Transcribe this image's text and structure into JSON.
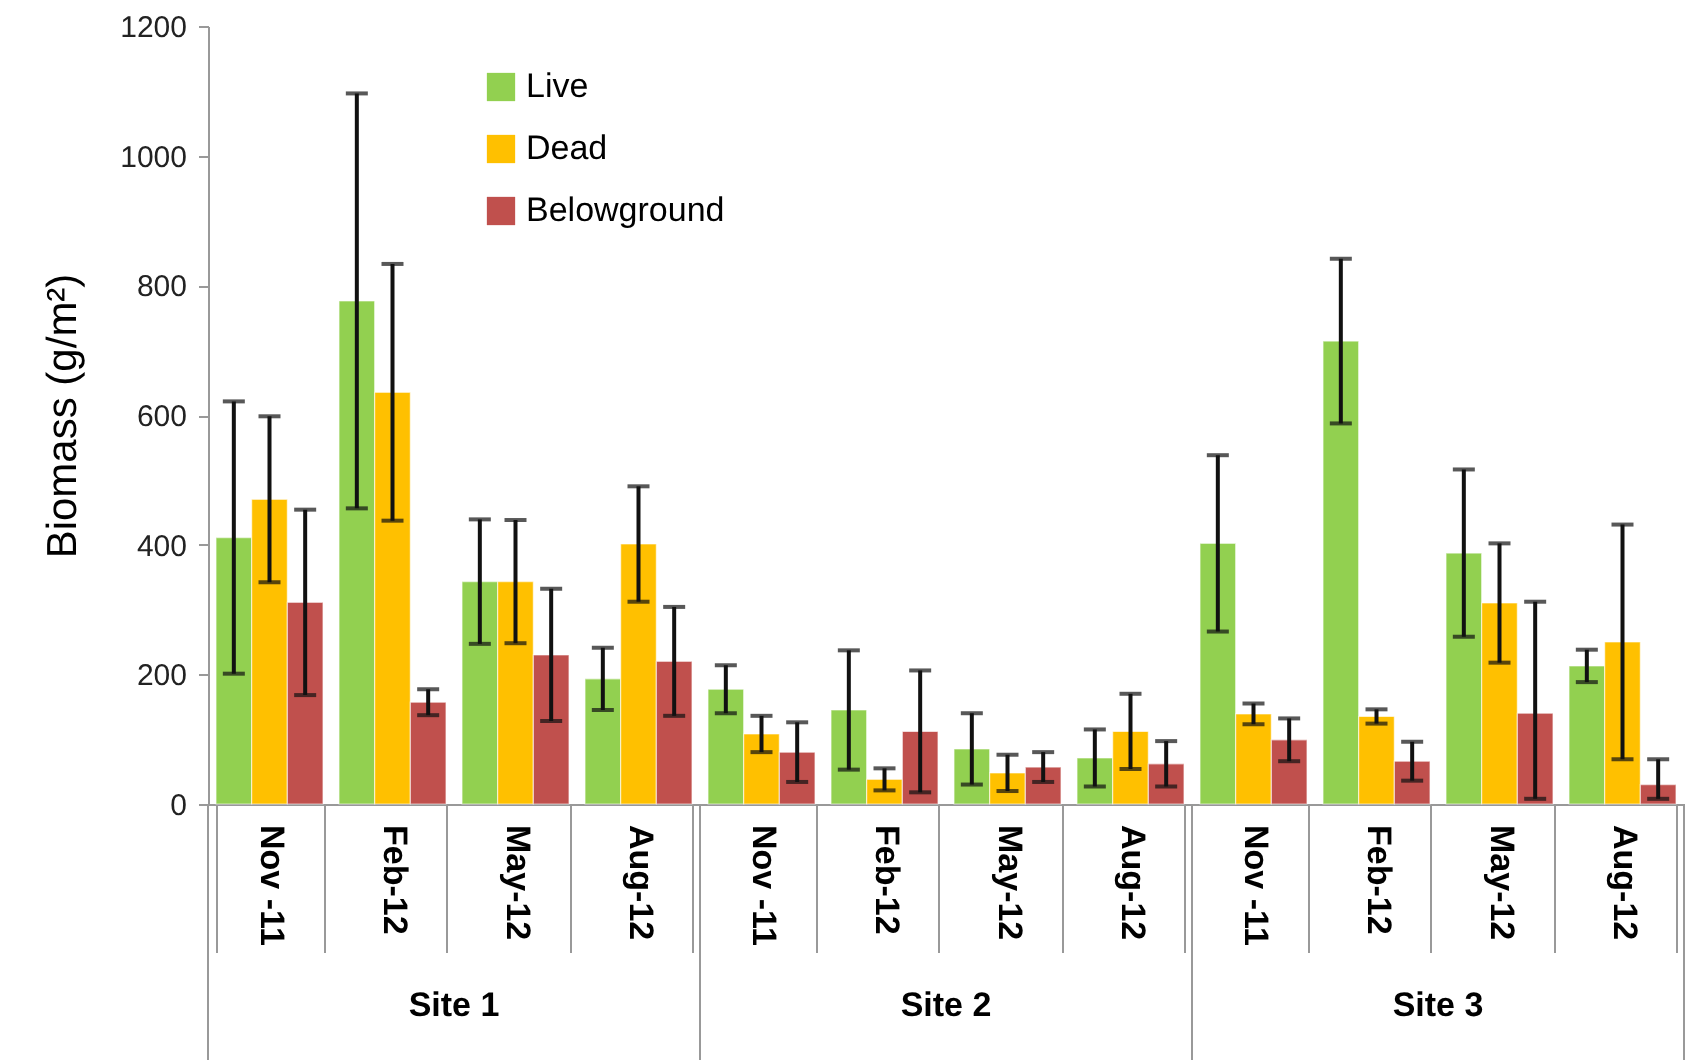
{
  "chart_data": {
    "type": "bar",
    "ylabel": "Biomass (g/m²)",
    "categories": [
      "Nov -11",
      "Feb-12",
      "May-12",
      "Aug-12",
      "Nov -11",
      "Feb-12",
      "May-12",
      "Aug-12",
      "Nov -11",
      "Feb-12",
      "May-12",
      "Aug-12"
    ],
    "series": [
      {
        "name": "Live",
        "color": "#92d050",
        "values": [
          411,
          776,
          343,
          193,
          177,
          145,
          85,
          71,
          402,
          714,
          387,
          213
        ],
        "errors": [
          210,
          320,
          96,
          48,
          37,
          92,
          55,
          44,
          136,
          127,
          129,
          25
        ]
      },
      {
        "name": "Dead",
        "color": "#ffc000",
        "values": [
          470,
          635,
          343,
          401,
          108,
          38,
          48,
          112,
          139,
          135,
          310,
          250
        ],
        "errors": [
          128,
          198,
          95,
          89,
          28,
          17,
          28,
          58,
          16,
          11,
          92,
          181
        ]
      },
      {
        "name": "Belowground",
        "color": "#c0504d",
        "values": [
          311,
          157,
          230,
          220,
          80,
          112,
          57,
          62,
          99,
          66,
          140,
          30
        ],
        "errors": [
          143,
          20,
          102,
          84,
          46,
          94,
          23,
          35,
          33,
          30,
          [
            8,
            312
          ],
          [
            8,
            69
          ]
        ]
      }
    ],
    "annotations": [
      "Site 1",
      "Site 2",
      "Site 3"
    ],
    "ylim": [
      0,
      1200
    ],
    "yticks": [
      0,
      200,
      400,
      600,
      800,
      1000,
      1200
    ],
    "grid": false,
    "legend": "top"
  }
}
